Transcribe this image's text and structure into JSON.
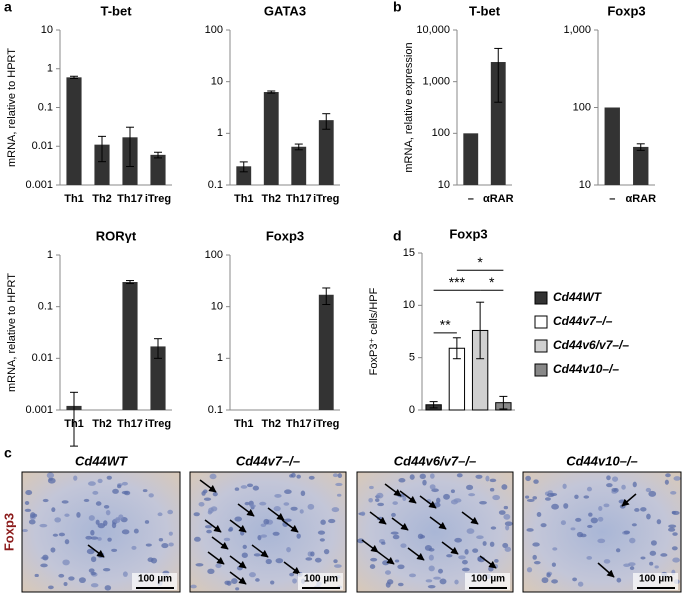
{
  "chart_data": [
    {
      "type": "bar",
      "panel_label": "a",
      "title": "T-bet",
      "ylabel": "mRNA, relative to HPRT",
      "log_y": true,
      "categories": [
        "Th1",
        "Th2",
        "Th17",
        "iTreg"
      ],
      "values": [
        0.6,
        0.011,
        0.017,
        0.006
      ],
      "errors": [
        0.04,
        0.007,
        0.014,
        0.001
      ],
      "color": "#333333",
      "ylim": [
        0.001,
        10
      ],
      "yticks": [
        0.001,
        0.01,
        0.1,
        1,
        10
      ]
    },
    {
      "type": "bar",
      "title": "GATA3",
      "log_y": true,
      "categories": [
        "Th1",
        "Th2",
        "Th17",
        "iTreg"
      ],
      "values": [
        0.23,
        6.3,
        0.55,
        1.8
      ],
      "errors": [
        0.05,
        0.3,
        0.07,
        0.6
      ],
      "color": "#333333",
      "ylim": [
        0.1,
        100
      ],
      "yticks": [
        0.1,
        1,
        10,
        100
      ]
    },
    {
      "type": "bar",
      "title": "RORγt",
      "ylabel": "mRNA, relative to HPRT",
      "log_y": true,
      "categories": [
        "Th1",
        "Th2",
        "Th17",
        "iTreg"
      ],
      "values": [
        0.0012,
        null,
        0.3,
        0.017
      ],
      "errors": [
        0.001,
        null,
        0.02,
        0.007
      ],
      "color": "#333333",
      "ylim": [
        0.001,
        1
      ],
      "yticks": [
        0.001,
        0.01,
        0.1,
        1
      ]
    },
    {
      "type": "bar",
      "title": "Foxp3",
      "log_y": true,
      "categories": [
        "Th1",
        "Th2",
        "Th17",
        "iTreg"
      ],
      "values": [
        null,
        null,
        null,
        17
      ],
      "errors": [
        null,
        null,
        null,
        6
      ],
      "color": "#333333",
      "ylim": [
        0.1,
        100
      ],
      "yticks": [
        0.1,
        1,
        10,
        100
      ]
    },
    {
      "type": "bar",
      "panel_label": "b",
      "title": "T-bet",
      "ylabel": "mRNA, relative expression",
      "log_y": true,
      "categories": [
        "–",
        "αRAR"
      ],
      "values": [
        100,
        2400
      ],
      "errors": [
        null,
        2000
      ],
      "color": "#333333",
      "ylim": [
        10,
        10000
      ],
      "yticks": [
        10,
        100,
        {
          "value": 1000,
          "label": "1,000"
        },
        {
          "value": 10000,
          "label": "10,000"
        }
      ]
    },
    {
      "type": "bar",
      "title": "Foxp3",
      "log_y": true,
      "categories": [
        "–",
        "αRAR"
      ],
      "values": [
        100,
        31
      ],
      "errors": [
        null,
        3
      ],
      "color": "#333333",
      "ylim": [
        10,
        1000
      ],
      "yticks": [
        10,
        100,
        {
          "value": 1000,
          "label": "1,000"
        }
      ]
    },
    {
      "type": "bar",
      "panel_label": "d",
      "title": "Foxp3",
      "ylabel": "FoxP3⁺ cells/HPF",
      "ylim": [
        0,
        15
      ],
      "yticks": [
        0,
        5,
        10,
        15
      ],
      "legend": "right",
      "series": [
        {
          "name": "Cd44WT",
          "color": "#333333",
          "values": [
            0.5
          ],
          "errors": [
            0.3
          ]
        },
        {
          "name": "Cd44v7–/–",
          "color": "#ffffff",
          "values": [
            5.9
          ],
          "errors": [
            1.0
          ]
        },
        {
          "name": "Cd44v6/v7–/–",
          "color": "#d0d0d0",
          "values": [
            7.6
          ],
          "errors": [
            2.7
          ]
        },
        {
          "name": "Cd44v10–/–",
          "color": "#888888",
          "values": [
            0.7
          ],
          "errors": [
            0.6
          ]
        }
      ],
      "annotations": [
        {
          "text": "**",
          "pair": [
            0,
            1
          ]
        },
        {
          "text": "***",
          "pair": [
            0,
            2
          ]
        },
        {
          "text": "*",
          "pair": [
            2,
            3
          ]
        },
        {
          "text": "*",
          "pair": [
            1,
            3
          ]
        }
      ]
    }
  ],
  "panel_c": {
    "panel_label": "c",
    "row_label": "Foxp3",
    "images": [
      {
        "title": "Cd44WT",
        "scale_bar": "100 µm"
      },
      {
        "title": "Cd44v7–/–",
        "scale_bar": "100 µm"
      },
      {
        "title": "Cd44v6/v7–/–",
        "scale_bar": "100 µm"
      },
      {
        "title": "Cd44v10–/–",
        "scale_bar": "100 µm"
      }
    ]
  }
}
